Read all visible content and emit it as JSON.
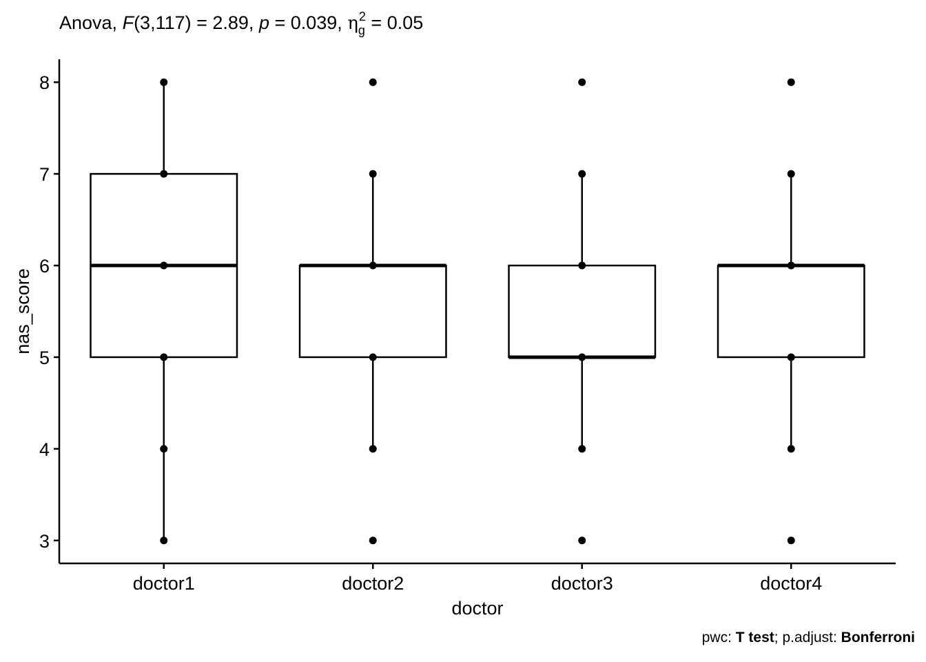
{
  "subtitle": {
    "prefix": "Anova, ",
    "f_symbol": "F",
    "f_value": "(3,117) = 2.89, ",
    "p_symbol": "p",
    "p_value": " = 0.039, ",
    "eta_symbol": "η",
    "eta_sub": "g",
    "eta_sup": "2",
    "eta_value": " = 0.05"
  },
  "caption": {
    "prefix": "pwc: ",
    "test": "T test",
    "middle": "; p.adjust: ",
    "method": "Bonferroni"
  },
  "chart_data": {
    "type": "box",
    "xlabel": "doctor",
    "ylabel": "nas_score",
    "ylim": [
      2.75,
      8.25
    ],
    "yticks": [
      3,
      4,
      5,
      6,
      7,
      8
    ],
    "categories": [
      "doctor1",
      "doctor2",
      "doctor3",
      "doctor4"
    ],
    "grid": false,
    "boxes": [
      {
        "category": "doctor1",
        "q1": 5,
        "median": 6,
        "q3": 7,
        "whisker_low": 3,
        "whisker_high": 8,
        "points": [
          3,
          4,
          5,
          6,
          7,
          8
        ]
      },
      {
        "category": "doctor2",
        "q1": 5,
        "median": 6,
        "q3": 6,
        "whisker_low": 4,
        "whisker_high": 7,
        "points": [
          3,
          4,
          5,
          6,
          7,
          8
        ]
      },
      {
        "category": "doctor3",
        "q1": 5,
        "median": 5,
        "q3": 6,
        "whisker_low": 4,
        "whisker_high": 7,
        "points": [
          3,
          4,
          5,
          6,
          7,
          8
        ]
      },
      {
        "category": "doctor4",
        "q1": 5,
        "median": 6,
        "q3": 6,
        "whisker_low": 4,
        "whisker_high": 7,
        "points": [
          3,
          4,
          5,
          6,
          7,
          8
        ]
      }
    ],
    "colors": {
      "line": "#000000",
      "fill": "#ffffff",
      "point": "#000000"
    }
  }
}
